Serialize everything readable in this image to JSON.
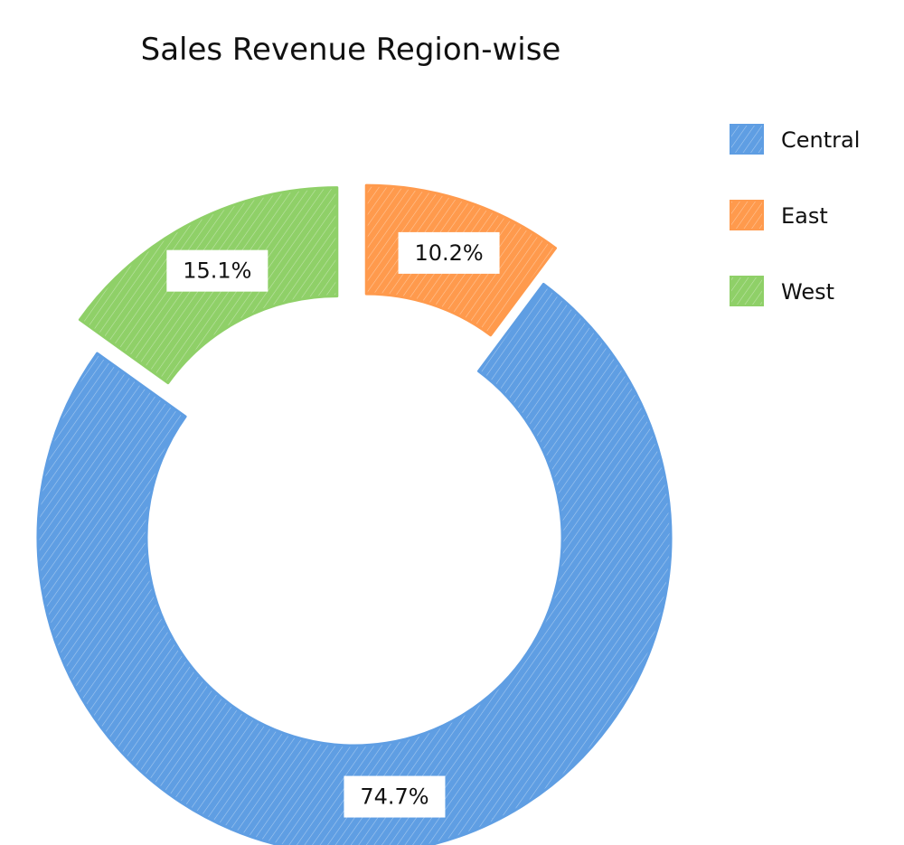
{
  "chart_data": {
    "type": "pie",
    "style": "donut",
    "title": "Sales Revenue Region-wise",
    "categories": [
      "Central",
      "East",
      "West"
    ],
    "values": [
      74.7,
      10.2,
      15.1
    ],
    "data_labels": [
      "74.7%",
      "10.2%",
      "15.1%"
    ],
    "colors": [
      "#5f9ee3",
      "#ff9a4d",
      "#8fd068"
    ],
    "exploded": [
      "East",
      "West"
    ],
    "legend": "right",
    "label_boxes": "white"
  }
}
